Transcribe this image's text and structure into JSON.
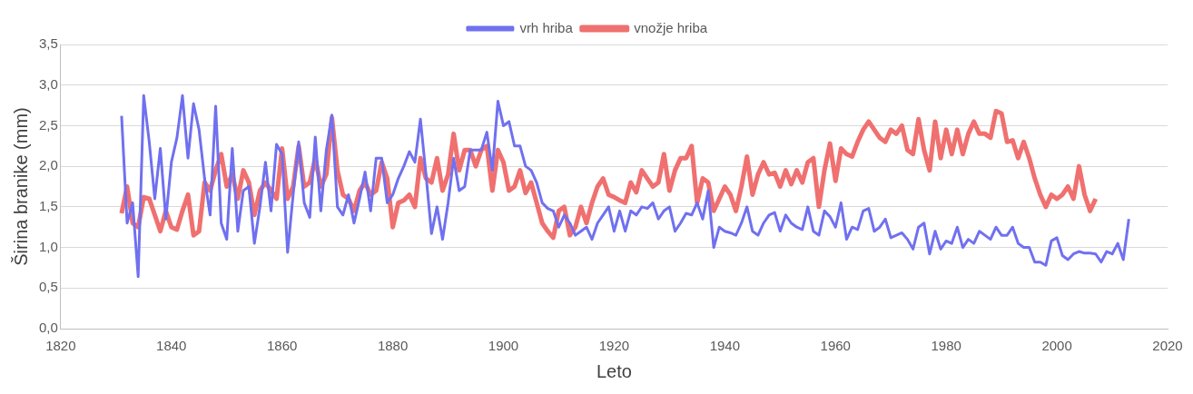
{
  "chart_data": {
    "type": "line",
    "xlabel": "Leto",
    "ylabel": "Širina branike (mm)",
    "x": [
      1831,
      1832,
      1833,
      1834,
      1835,
      1836,
      1837,
      1838,
      1839,
      1840,
      1841,
      1842,
      1843,
      1844,
      1845,
      1846,
      1847,
      1848,
      1849,
      1850,
      1851,
      1852,
      1853,
      1854,
      1855,
      1856,
      1857,
      1858,
      1859,
      1860,
      1861,
      1862,
      1863,
      1864,
      1865,
      1866,
      1867,
      1868,
      1869,
      1870,
      1871,
      1872,
      1873,
      1874,
      1875,
      1876,
      1877,
      1878,
      1879,
      1880,
      1881,
      1882,
      1883,
      1884,
      1885,
      1886,
      1887,
      1888,
      1889,
      1890,
      1891,
      1892,
      1893,
      1894,
      1895,
      1896,
      1897,
      1898,
      1899,
      1900,
      1901,
      1902,
      1903,
      1904,
      1905,
      1906,
      1907,
      1908,
      1909,
      1910,
      1911,
      1912,
      1913,
      1914,
      1915,
      1916,
      1917,
      1918,
      1919,
      1920,
      1921,
      1922,
      1923,
      1924,
      1925,
      1926,
      1927,
      1928,
      1929,
      1930,
      1931,
      1932,
      1933,
      1934,
      1935,
      1936,
      1937,
      1938,
      1939,
      1940,
      1941,
      1942,
      1943,
      1944,
      1945,
      1946,
      1947,
      1948,
      1949,
      1950,
      1951,
      1952,
      1953,
      1954,
      1955,
      1956,
      1957,
      1958,
      1959,
      1960,
      1961,
      1962,
      1963,
      1964,
      1965,
      1966,
      1967,
      1968,
      1969,
      1970,
      1971,
      1972,
      1973,
      1974,
      1975,
      1976,
      1977,
      1978,
      1979,
      1980,
      1981,
      1982,
      1983,
      1984,
      1985,
      1986,
      1987,
      1988,
      1989,
      1990,
      1991,
      1992,
      1993,
      1994,
      1995,
      1996,
      1997,
      1998,
      1999,
      2000,
      2001,
      2002,
      2003,
      2004,
      2005,
      2006,
      2007,
      2008,
      2009,
      2010,
      2011,
      2012,
      2013
    ],
    "series": [
      {
        "name": "vrh hriba",
        "color": "#7070f0",
        "values": [
          2.62,
          1.3,
          1.55,
          0.64,
          2.87,
          2.3,
          1.6,
          2.22,
          1.35,
          2.05,
          2.35,
          2.87,
          2.1,
          2.77,
          2.45,
          1.85,
          1.4,
          2.74,
          1.3,
          1.1,
          2.22,
          1.2,
          1.7,
          1.75,
          1.05,
          1.5,
          2.05,
          1.45,
          2.27,
          2.15,
          0.94,
          1.65,
          2.3,
          1.55,
          1.37,
          2.36,
          1.45,
          2.2,
          2.63,
          1.5,
          1.4,
          1.65,
          1.3,
          1.6,
          1.93,
          1.45,
          2.1,
          2.1,
          1.55,
          1.65,
          1.85,
          2.0,
          2.18,
          2.05,
          2.58,
          1.9,
          1.17,
          1.5,
          1.1,
          1.55,
          2.1,
          1.7,
          1.75,
          2.2,
          2.2,
          2.2,
          2.42,
          1.95,
          2.8,
          2.5,
          2.55,
          2.25,
          2.25,
          2.0,
          1.95,
          1.8,
          1.55,
          1.48,
          1.45,
          1.25,
          1.4,
          1.3,
          1.15,
          1.2,
          1.25,
          1.1,
          1.3,
          1.4,
          1.5,
          1.2,
          1.45,
          1.2,
          1.45,
          1.4,
          1.5,
          1.48,
          1.55,
          1.35,
          1.45,
          1.5,
          1.2,
          1.3,
          1.42,
          1.4,
          1.55,
          1.35,
          1.7,
          1.0,
          1.25,
          1.2,
          1.18,
          1.15,
          1.3,
          1.5,
          1.2,
          1.15,
          1.3,
          1.4,
          1.43,
          1.2,
          1.4,
          1.3,
          1.25,
          1.22,
          1.5,
          1.2,
          1.15,
          1.45,
          1.38,
          1.25,
          1.55,
          1.1,
          1.25,
          1.22,
          1.45,
          1.48,
          1.2,
          1.25,
          1.35,
          1.12,
          1.15,
          1.18,
          1.1,
          0.98,
          1.25,
          1.3,
          0.92,
          1.2,
          0.98,
          1.08,
          1.05,
          1.25,
          1.0,
          1.1,
          1.05,
          1.2,
          1.15,
          1.1,
          1.25,
          1.15,
          1.15,
          1.25,
          1.05,
          1.0,
          1.0,
          0.82,
          0.82,
          0.78,
          1.08,
          1.12,
          0.9,
          0.85,
          0.92,
          0.95,
          0.93,
          0.93,
          0.92,
          0.82,
          0.95,
          0.92,
          1.05,
          0.85,
          1.35
        ]
      },
      {
        "name": "vnožje hriba",
        "color": "#f07070",
        "values": [
          1.42,
          1.75,
          1.3,
          1.25,
          1.62,
          1.6,
          1.4,
          1.2,
          1.45,
          1.25,
          1.22,
          1.45,
          1.65,
          1.15,
          1.2,
          1.8,
          1.7,
          1.95,
          2.15,
          1.75,
          1.9,
          1.6,
          1.95,
          1.8,
          1.4,
          1.7,
          1.8,
          1.7,
          1.6,
          2.22,
          1.6,
          1.75,
          2.25,
          1.75,
          1.8,
          2.1,
          1.75,
          1.9,
          2.6,
          1.95,
          1.65,
          1.6,
          1.45,
          1.7,
          1.8,
          1.65,
          1.7,
          2.05,
          1.85,
          1.25,
          1.55,
          1.58,
          1.65,
          1.5,
          2.1,
          1.85,
          1.8,
          2.1,
          1.7,
          1.9,
          2.4,
          1.95,
          2.2,
          2.2,
          2.0,
          2.2,
          2.25,
          1.7,
          2.2,
          2.05,
          1.7,
          1.75,
          1.95,
          1.67,
          1.8,
          1.55,
          1.3,
          1.2,
          1.12,
          1.45,
          1.5,
          1.15,
          1.25,
          1.5,
          1.3,
          1.55,
          1.75,
          1.85,
          1.65,
          1.62,
          1.58,
          1.55,
          1.8,
          1.68,
          1.95,
          1.85,
          1.75,
          1.8,
          2.15,
          1.7,
          1.95,
          2.1,
          2.1,
          2.25,
          1.55,
          1.85,
          1.8,
          1.45,
          1.6,
          1.75,
          1.65,
          1.45,
          1.75,
          2.12,
          1.65,
          1.9,
          2.05,
          1.9,
          1.92,
          1.75,
          1.95,
          1.78,
          1.95,
          1.8,
          2.05,
          2.1,
          1.5,
          1.95,
          2.28,
          1.82,
          2.22,
          2.15,
          2.12,
          2.3,
          2.45,
          2.55,
          2.45,
          2.35,
          2.3,
          2.45,
          2.4,
          2.5,
          2.2,
          2.15,
          2.58,
          2.2,
          1.95,
          2.55,
          2.1,
          2.45,
          2.15,
          2.45,
          2.15,
          2.4,
          2.55,
          2.4,
          2.4,
          2.35,
          2.68,
          2.65,
          2.3,
          2.32,
          2.1,
          2.3,
          2.1,
          1.85,
          1.65,
          1.5,
          1.65,
          1.6,
          1.65,
          1.75,
          1.6,
          2.0,
          1.65,
          1.45,
          1.6,
          null,
          null,
          null,
          null,
          null,
          null
        ]
      }
    ],
    "xlim": [
      1820,
      2020
    ],
    "xticks": [
      1820,
      1840,
      1860,
      1880,
      1900,
      1920,
      1940,
      1960,
      1980,
      2000,
      2020
    ],
    "ylim": [
      0,
      3.5
    ],
    "yticks": [
      {
        "value": 0,
        "label": "0,0"
      },
      {
        "value": 0.5,
        "label": "0,5"
      },
      {
        "value": 1,
        "label": "1,0"
      },
      {
        "value": 1.5,
        "label": "1,5"
      },
      {
        "value": 2,
        "label": "2,0"
      },
      {
        "value": 2.5,
        "label": "2,5"
      },
      {
        "value": 3,
        "label": "3,0"
      },
      {
        "value": 3.5,
        "label": "3,5"
      }
    ],
    "grid": "y",
    "legend": "top",
    "marker": "none",
    "line_style": "solid"
  }
}
